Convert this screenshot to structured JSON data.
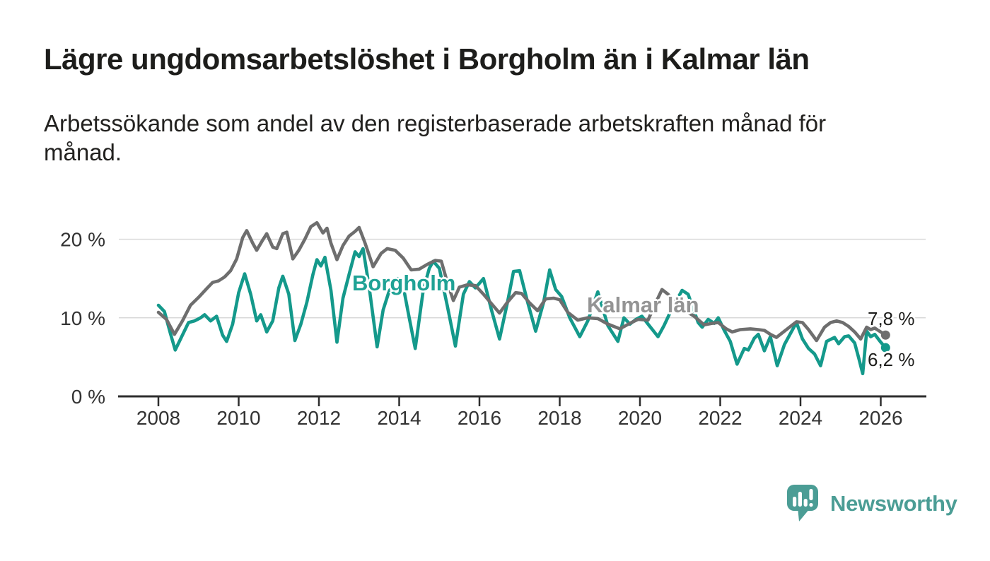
{
  "header": {
    "title": "Lägre ungdomsarbetslöshet i Borgholm än i Kalmar län",
    "subtitle": "Arbetssökande som andel av den registerbaserade arbetskraften månad för månad."
  },
  "chart_data": {
    "type": "line",
    "title": "Lägre ungdomsarbetslöshet i Borgholm än i Kalmar län",
    "subtitle": "Arbetssökande som andel av den registerbaserade arbetskraften månad för månad.",
    "unit": "%",
    "xlabel": "",
    "ylabel": "",
    "xlim": [
      2007.9,
      2027.1
    ],
    "ylim": [
      0,
      22.5
    ],
    "grid": "horizontal",
    "x_ticks": [
      "2008",
      "2010",
      "2012",
      "2014",
      "2016",
      "2018",
      "2020",
      "2022",
      "2024",
      "2026"
    ],
    "y_ticks": [
      {
        "value": 0,
        "label": "0 %"
      },
      {
        "value": 10,
        "label": "10 %"
      },
      {
        "value": 20,
        "label": "20 %"
      }
    ],
    "colors": {
      "grid": "#d9d9d9",
      "axis": "#2d2d2d",
      "tick_text": "#333333"
    },
    "series": [
      {
        "name": "Borgholm",
        "color": "#14998B",
        "label_color": "#1FA295",
        "end_label": "6,2 %",
        "end_value": 6.2,
        "points": [
          [
            2008.0,
            11.6
          ],
          [
            2008.15,
            10.8
          ],
          [
            2008.3,
            8.0
          ],
          [
            2008.42,
            5.9
          ],
          [
            2008.58,
            7.6
          ],
          [
            2008.75,
            9.4
          ],
          [
            2008.9,
            9.6
          ],
          [
            2009.05,
            10.0
          ],
          [
            2009.15,
            10.4
          ],
          [
            2009.3,
            9.6
          ],
          [
            2009.45,
            10.2
          ],
          [
            2009.6,
            7.8
          ],
          [
            2009.7,
            7.0
          ],
          [
            2009.85,
            9.2
          ],
          [
            2010.0,
            13.2
          ],
          [
            2010.15,
            15.6
          ],
          [
            2010.3,
            13.0
          ],
          [
            2010.45,
            9.6
          ],
          [
            2010.55,
            10.4
          ],
          [
            2010.7,
            8.2
          ],
          [
            2010.85,
            9.6
          ],
          [
            2011.0,
            13.8
          ],
          [
            2011.1,
            15.3
          ],
          [
            2011.25,
            13.0
          ],
          [
            2011.4,
            7.1
          ],
          [
            2011.55,
            9.2
          ],
          [
            2011.7,
            12.0
          ],
          [
            2011.85,
            15.5
          ],
          [
            2011.95,
            17.4
          ],
          [
            2012.05,
            16.6
          ],
          [
            2012.15,
            17.7
          ],
          [
            2012.3,
            13.5
          ],
          [
            2012.45,
            6.9
          ],
          [
            2012.6,
            12.5
          ],
          [
            2012.75,
            15.5
          ],
          [
            2012.9,
            18.4
          ],
          [
            2013.0,
            17.8
          ],
          [
            2013.1,
            18.8
          ],
          [
            2013.25,
            14.0
          ],
          [
            2013.45,
            6.3
          ],
          [
            2013.6,
            11.0
          ],
          [
            2013.75,
            13.4
          ],
          [
            2013.95,
            15.0
          ],
          [
            2014.1,
            14.0
          ],
          [
            2014.25,
            10.0
          ],
          [
            2014.4,
            6.1
          ],
          [
            2014.6,
            13.5
          ],
          [
            2014.75,
            16.3
          ],
          [
            2014.85,
            17.2
          ],
          [
            2015.0,
            16.3
          ],
          [
            2015.2,
            11.5
          ],
          [
            2015.4,
            6.4
          ],
          [
            2015.6,
            13.0
          ],
          [
            2015.75,
            14.6
          ],
          [
            2015.9,
            13.8
          ],
          [
            2016.1,
            15.0
          ],
          [
            2016.3,
            11.0
          ],
          [
            2016.5,
            7.3
          ],
          [
            2016.7,
            12.0
          ],
          [
            2016.85,
            15.9
          ],
          [
            2017.0,
            16.0
          ],
          [
            2017.2,
            12.0
          ],
          [
            2017.4,
            8.3
          ],
          [
            2017.6,
            12.0
          ],
          [
            2017.75,
            16.1
          ],
          [
            2017.9,
            13.6
          ],
          [
            2018.05,
            12.7
          ],
          [
            2018.25,
            10.0
          ],
          [
            2018.5,
            7.6
          ],
          [
            2018.7,
            9.6
          ],
          [
            2018.95,
            13.3
          ],
          [
            2019.2,
            9.0
          ],
          [
            2019.45,
            7.0
          ],
          [
            2019.6,
            10.0
          ],
          [
            2019.75,
            9.2
          ],
          [
            2019.9,
            9.8
          ],
          [
            2020.05,
            10.2
          ],
          [
            2020.2,
            9.2
          ],
          [
            2020.45,
            7.6
          ],
          [
            2020.6,
            9.0
          ],
          [
            2020.8,
            11.2
          ],
          [
            2021.05,
            13.5
          ],
          [
            2021.2,
            13.0
          ],
          [
            2021.45,
            9.4
          ],
          [
            2021.55,
            8.8
          ],
          [
            2021.7,
            9.8
          ],
          [
            2021.85,
            9.3
          ],
          [
            2021.95,
            10.0
          ],
          [
            2022.1,
            8.4
          ],
          [
            2022.25,
            7.0
          ],
          [
            2022.42,
            4.1
          ],
          [
            2022.6,
            6.1
          ],
          [
            2022.7,
            5.9
          ],
          [
            2022.85,
            7.4
          ],
          [
            2022.95,
            7.9
          ],
          [
            2023.1,
            5.8
          ],
          [
            2023.25,
            7.6
          ],
          [
            2023.42,
            3.9
          ],
          [
            2023.6,
            6.6
          ],
          [
            2023.75,
            8.0
          ],
          [
            2023.9,
            9.4
          ],
          [
            2024.05,
            7.3
          ],
          [
            2024.2,
            6.1
          ],
          [
            2024.35,
            5.4
          ],
          [
            2024.5,
            3.9
          ],
          [
            2024.65,
            7.0
          ],
          [
            2024.85,
            7.5
          ],
          [
            2024.95,
            6.7
          ],
          [
            2025.1,
            7.6
          ],
          [
            2025.2,
            7.7
          ],
          [
            2025.35,
            6.8
          ],
          [
            2025.45,
            4.9
          ],
          [
            2025.55,
            2.9
          ],
          [
            2025.65,
            8.3
          ],
          [
            2025.75,
            7.6
          ],
          [
            2025.85,
            7.9
          ],
          [
            2026.0,
            6.9
          ],
          [
            2026.12,
            6.2
          ]
        ]
      },
      {
        "name": "Kalmar län",
        "color": "#6E6E6E",
        "label_color": "#949494",
        "end_label": "7,8 %",
        "end_value": 7.8,
        "points": [
          [
            2008.0,
            10.7
          ],
          [
            2008.2,
            9.8
          ],
          [
            2008.4,
            7.9
          ],
          [
            2008.6,
            9.6
          ],
          [
            2008.8,
            11.6
          ],
          [
            2009.0,
            12.6
          ],
          [
            2009.2,
            13.7
          ],
          [
            2009.35,
            14.5
          ],
          [
            2009.5,
            14.7
          ],
          [
            2009.65,
            15.2
          ],
          [
            2009.8,
            16.0
          ],
          [
            2009.95,
            17.5
          ],
          [
            2010.1,
            20.2
          ],
          [
            2010.2,
            21.1
          ],
          [
            2010.35,
            19.5
          ],
          [
            2010.45,
            18.6
          ],
          [
            2010.6,
            19.9
          ],
          [
            2010.7,
            20.7
          ],
          [
            2010.85,
            19.0
          ],
          [
            2010.95,
            18.8
          ],
          [
            2011.1,
            20.7
          ],
          [
            2011.2,
            20.9
          ],
          [
            2011.35,
            17.5
          ],
          [
            2011.5,
            18.6
          ],
          [
            2011.65,
            20.0
          ],
          [
            2011.8,
            21.6
          ],
          [
            2011.95,
            22.1
          ],
          [
            2012.1,
            20.8
          ],
          [
            2012.2,
            21.4
          ],
          [
            2012.3,
            19.5
          ],
          [
            2012.45,
            17.4
          ],
          [
            2012.6,
            19.2
          ],
          [
            2012.75,
            20.4
          ],
          [
            2012.9,
            21.0
          ],
          [
            2013.0,
            21.5
          ],
          [
            2013.15,
            19.5
          ],
          [
            2013.35,
            16.5
          ],
          [
            2013.55,
            18.2
          ],
          [
            2013.7,
            18.8
          ],
          [
            2013.9,
            18.6
          ],
          [
            2014.1,
            17.6
          ],
          [
            2014.3,
            16.1
          ],
          [
            2014.5,
            16.2
          ],
          [
            2014.7,
            16.8
          ],
          [
            2014.9,
            17.3
          ],
          [
            2015.05,
            17.2
          ],
          [
            2015.2,
            14.5
          ],
          [
            2015.35,
            12.2
          ],
          [
            2015.5,
            13.9
          ],
          [
            2015.7,
            14.2
          ],
          [
            2015.9,
            14.1
          ],
          [
            2016.1,
            13.0
          ],
          [
            2016.3,
            11.8
          ],
          [
            2016.5,
            10.6
          ],
          [
            2016.7,
            12.0
          ],
          [
            2016.9,
            13.2
          ],
          [
            2017.05,
            13.1
          ],
          [
            2017.25,
            11.9
          ],
          [
            2017.45,
            10.9
          ],
          [
            2017.65,
            12.4
          ],
          [
            2017.85,
            12.5
          ],
          [
            2018.0,
            12.3
          ],
          [
            2018.2,
            10.7
          ],
          [
            2018.45,
            9.7
          ],
          [
            2018.7,
            10.0
          ],
          [
            2018.95,
            9.9
          ],
          [
            2019.2,
            9.2
          ],
          [
            2019.5,
            8.6
          ],
          [
            2019.75,
            9.3
          ],
          [
            2019.95,
            9.8
          ],
          [
            2020.2,
            9.7
          ],
          [
            2020.4,
            12.0
          ],
          [
            2020.55,
            13.6
          ],
          [
            2020.7,
            13.0
          ],
          [
            2020.9,
            11.8
          ],
          [
            2021.1,
            11.0
          ],
          [
            2021.35,
            10.2
          ],
          [
            2021.6,
            9.1
          ],
          [
            2021.8,
            9.3
          ],
          [
            2021.95,
            9.4
          ],
          [
            2022.15,
            8.6
          ],
          [
            2022.3,
            8.2
          ],
          [
            2022.5,
            8.5
          ],
          [
            2022.75,
            8.6
          ],
          [
            2022.95,
            8.5
          ],
          [
            2023.1,
            8.4
          ],
          [
            2023.25,
            7.9
          ],
          [
            2023.4,
            7.5
          ],
          [
            2023.6,
            8.3
          ],
          [
            2023.75,
            8.9
          ],
          [
            2023.9,
            9.5
          ],
          [
            2024.05,
            9.4
          ],
          [
            2024.2,
            8.5
          ],
          [
            2024.4,
            7.1
          ],
          [
            2024.6,
            8.8
          ],
          [
            2024.75,
            9.4
          ],
          [
            2024.9,
            9.6
          ],
          [
            2025.05,
            9.4
          ],
          [
            2025.2,
            8.9
          ],
          [
            2025.35,
            8.2
          ],
          [
            2025.5,
            7.3
          ],
          [
            2025.65,
            8.8
          ],
          [
            2025.75,
            8.5
          ],
          [
            2025.85,
            8.7
          ],
          [
            2026.0,
            8.2
          ],
          [
            2026.12,
            7.8
          ]
        ]
      }
    ]
  },
  "branding": {
    "logo_text": "Newsworthy",
    "logo_color": "#4B9D95"
  }
}
